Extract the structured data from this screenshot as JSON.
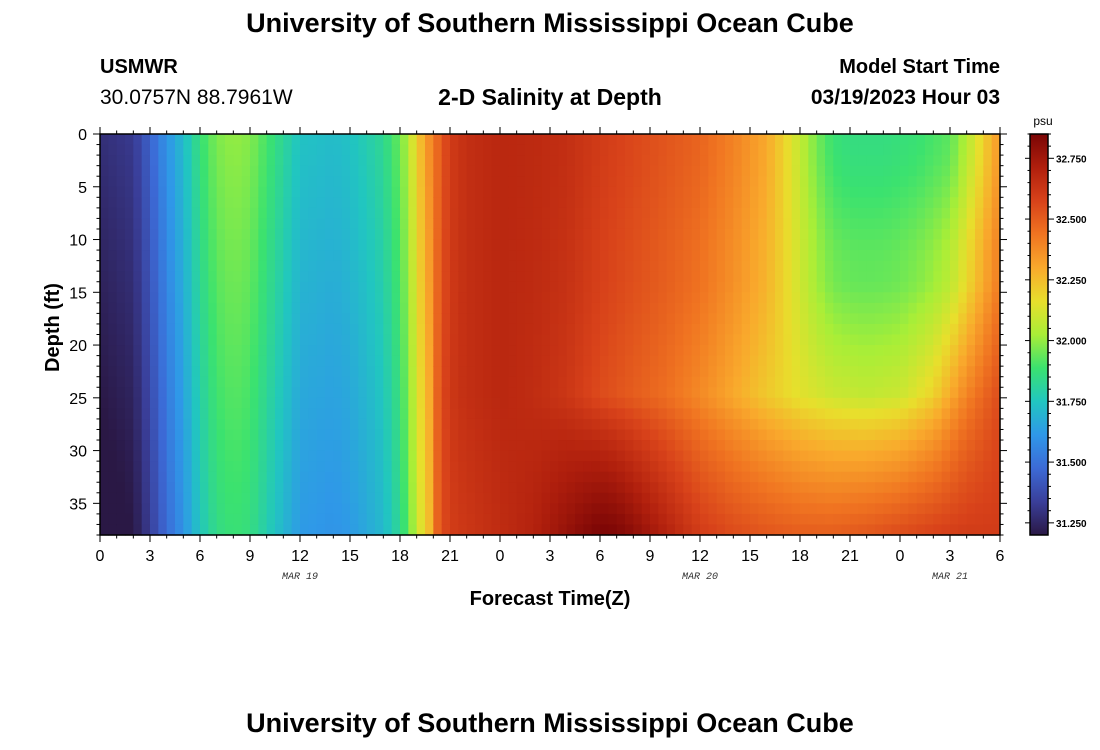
{
  "header": {
    "title": "University of Southern Mississippi Ocean Cube",
    "station": "USMWR",
    "coordinates": "30.0757N  88.7961W",
    "product": "2-D Salinity at Depth",
    "model_start_label": "Model Start Time",
    "model_start_value": "03/19/2023 Hour 03"
  },
  "footer": {
    "title": "University of Southern Mississippi Ocean Cube"
  },
  "chart_data": {
    "type": "heatmap",
    "title": "2-D Salinity at Depth",
    "xlabel": "Forecast Time(Z)",
    "ylabel": "Depth (ft)",
    "x_range": [
      0,
      54
    ],
    "y_range": [
      0,
      38
    ],
    "y_inverted": true,
    "x_ticks": [
      {
        "value": 0,
        "label": "0"
      },
      {
        "value": 3,
        "label": "3"
      },
      {
        "value": 6,
        "label": "6"
      },
      {
        "value": 9,
        "label": "9"
      },
      {
        "value": 12,
        "label": "12"
      },
      {
        "value": 15,
        "label": "15"
      },
      {
        "value": 18,
        "label": "18"
      },
      {
        "value": 21,
        "label": "21"
      },
      {
        "value": 24,
        "label": "0"
      },
      {
        "value": 27,
        "label": "3"
      },
      {
        "value": 30,
        "label": "6"
      },
      {
        "value": 33,
        "label": "9"
      },
      {
        "value": 36,
        "label": "12"
      },
      {
        "value": 39,
        "label": "15"
      },
      {
        "value": 42,
        "label": "18"
      },
      {
        "value": 45,
        "label": "21"
      },
      {
        "value": 48,
        "label": "0"
      },
      {
        "value": 51,
        "label": "3"
      },
      {
        "value": 54,
        "label": "6"
      }
    ],
    "date_labels": [
      {
        "value": 12,
        "label": "MAR 19"
      },
      {
        "value": 36,
        "label": "MAR 20"
      },
      {
        "value": 51,
        "label": "MAR 21"
      }
    ],
    "y_ticks": [
      {
        "value": 0,
        "label": "0"
      },
      {
        "value": 5,
        "label": "5"
      },
      {
        "value": 10,
        "label": "10"
      },
      {
        "value": 15,
        "label": "15"
      },
      {
        "value": 20,
        "label": "20"
      },
      {
        "value": 25,
        "label": "25"
      },
      {
        "value": 30,
        "label": "30"
      },
      {
        "value": 35,
        "label": "35"
      }
    ],
    "colorbar": {
      "unit": "psu",
      "range": [
        31.2,
        32.85
      ],
      "ticks": [
        {
          "value": 32.75,
          "label": "32.750"
        },
        {
          "value": 32.5,
          "label": "32.500"
        },
        {
          "value": 32.25,
          "label": "32.250"
        },
        {
          "value": 32.0,
          "label": "32.000"
        },
        {
          "value": 31.75,
          "label": "31.750"
        },
        {
          "value": 31.5,
          "label": "31.500"
        },
        {
          "value": 31.25,
          "label": "31.250"
        }
      ],
      "stops": [
        "#2a1845",
        "#3a3f9a",
        "#3c6ad6",
        "#2f98e8",
        "#21c6c0",
        "#3be26f",
        "#a9ee37",
        "#e8df2c",
        "#f9a92c",
        "#f07421",
        "#d8421a",
        "#b01f0d",
        "#7a0505"
      ]
    },
    "surface_profile": {
      "x": [
        0,
        2,
        3,
        4,
        5,
        6,
        7,
        8,
        9,
        10,
        11,
        12,
        14,
        15,
        16,
        17,
        18,
        18.5,
        19,
        19.5,
        20,
        20.5,
        21,
        22,
        24,
        26,
        28,
        30,
        32,
        34,
        36,
        38,
        40,
        41,
        42,
        43,
        44,
        45,
        47,
        49,
        51,
        52,
        53,
        54
      ],
      "values": [
        31.28,
        31.32,
        31.45,
        31.6,
        31.72,
        31.87,
        31.97,
        32.0,
        31.98,
        31.9,
        31.82,
        31.74,
        31.72,
        31.74,
        31.78,
        31.83,
        31.95,
        32.05,
        32.2,
        32.32,
        32.42,
        32.52,
        32.6,
        32.65,
        32.68,
        32.67,
        32.65,
        32.6,
        32.56,
        32.52,
        32.48,
        32.4,
        32.3,
        32.2,
        32.08,
        31.96,
        31.88,
        31.86,
        31.86,
        31.88,
        31.93,
        32.05,
        32.2,
        32.35
      ]
    },
    "mid_profile": {
      "x": [
        20,
        22,
        24,
        26,
        28,
        30,
        32,
        34,
        36,
        38,
        40,
        42,
        44,
        46,
        48,
        50,
        52,
        54
      ],
      "values": [
        32.6,
        32.65,
        32.68,
        32.66,
        32.62,
        32.55,
        32.5,
        32.45,
        32.38,
        32.3,
        32.22,
        32.15,
        32.1,
        32.08,
        32.1,
        32.2,
        32.4,
        32.55
      ]
    },
    "bottom_profile": {
      "x": [
        20,
        22,
        24,
        26,
        27,
        28,
        29,
        30,
        31,
        32,
        33,
        34,
        36,
        38,
        40,
        42,
        44,
        46,
        48,
        50,
        52,
        54
      ],
      "values": [
        32.55,
        32.62,
        32.66,
        32.7,
        32.74,
        32.78,
        32.82,
        32.85,
        32.84,
        32.8,
        32.75,
        32.7,
        32.6,
        32.55,
        32.52,
        32.5,
        32.5,
        32.52,
        32.55,
        32.58,
        32.6,
        32.6
      ]
    }
  }
}
